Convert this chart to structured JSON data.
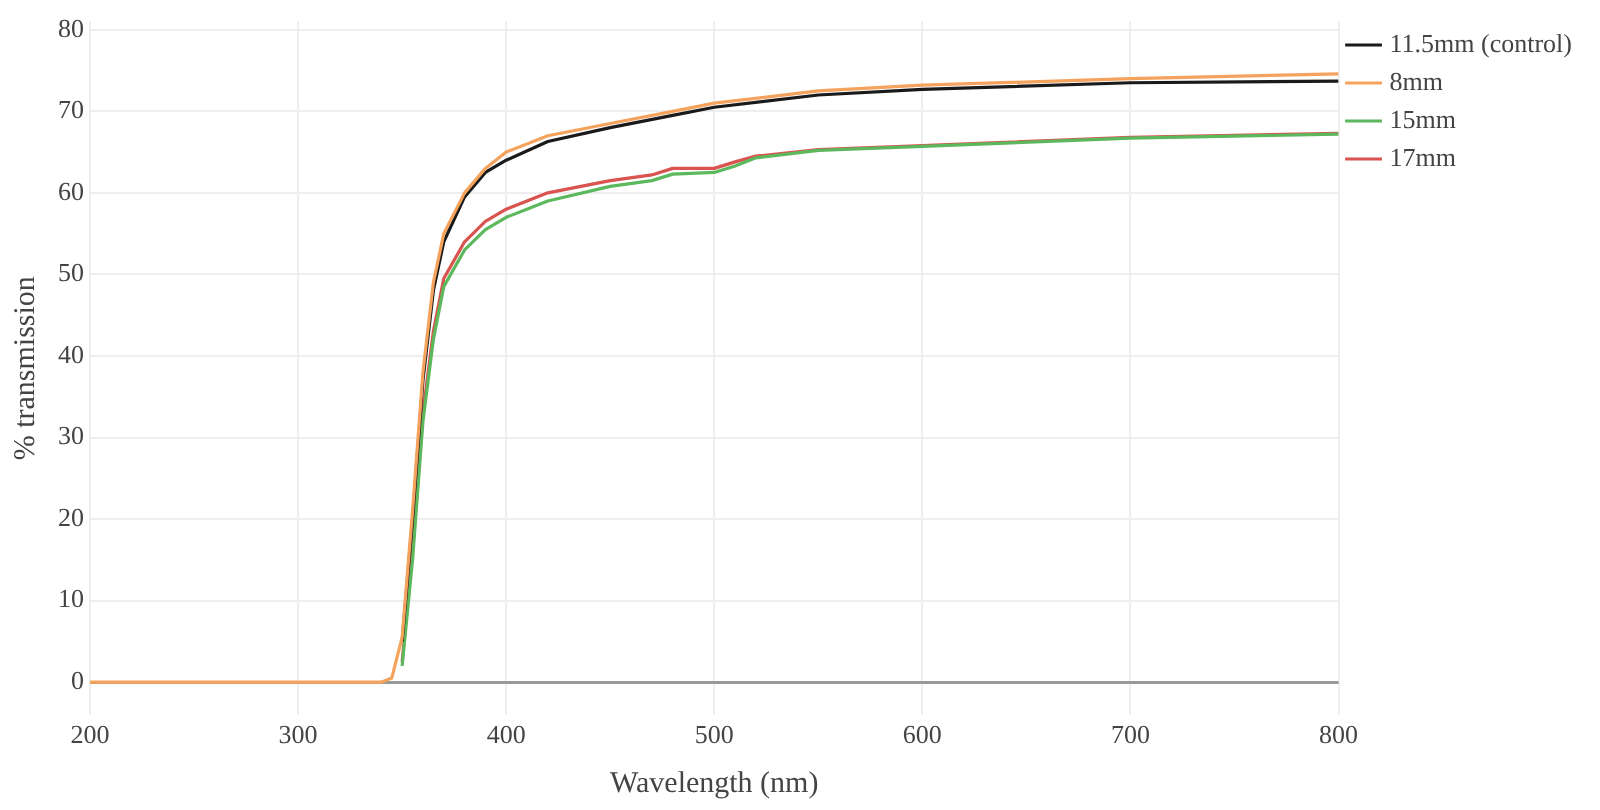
{
  "chart_data": {
    "type": "line",
    "xlabel": "Wavelength (nm)",
    "ylabel": "% transmission",
    "xlim": [
      200,
      800
    ],
    "xticks": [
      200,
      300,
      400,
      500,
      600,
      700,
      800
    ],
    "ylim": [
      -4,
      81
    ],
    "yticks": [
      0,
      10,
      20,
      30,
      40,
      50,
      60,
      70,
      80
    ],
    "grid": true,
    "legend": "top right",
    "marker": "none",
    "line_style": "solid",
    "series": [
      {
        "name": "11.5mm (control)",
        "color": "#1a1a1a",
        "x": [
          350,
          355,
          360,
          365,
          370,
          380,
          390,
          400,
          420,
          450,
          480,
          500,
          550,
          600,
          700,
          800
        ],
        "values": [
          5,
          20,
          37,
          48,
          54,
          59.5,
          62.5,
          64,
          66.3,
          68,
          69.5,
          70.5,
          72,
          72.7,
          73.5,
          73.7
        ]
      },
      {
        "name": "8mm",
        "color": "#f5a25d",
        "x": [
          200,
          300,
          340,
          345,
          350,
          355,
          360,
          365,
          370,
          380,
          390,
          400,
          420,
          450,
          480,
          500,
          550,
          600,
          700,
          800
        ],
        "values": [
          0,
          0,
          0,
          0.5,
          5.5,
          21,
          38,
          49,
          55,
          60,
          63,
          65,
          67,
          68.5,
          70,
          71,
          72.5,
          73.2,
          74,
          74.6
        ]
      },
      {
        "name": "15mm",
        "color": "#5cb85c",
        "x": [
          350,
          355,
          360,
          365,
          370,
          380,
          390,
          400,
          420,
          450,
          470,
          480,
          500,
          510,
          520,
          550,
          600,
          700,
          800
        ],
        "values": [
          2,
          15,
          32,
          42,
          48.5,
          53,
          55.5,
          57,
          59,
          60.8,
          61.5,
          62.3,
          62.5,
          63.3,
          64.3,
          65.2,
          65.7,
          66.7,
          67.2
        ]
      },
      {
        "name": "17mm",
        "color": "#d9534f",
        "x": [
          350,
          355,
          360,
          365,
          370,
          380,
          390,
          400,
          420,
          450,
          470,
          480,
          500,
          510,
          520,
          550,
          600,
          700,
          800
        ],
        "values": [
          2.5,
          16,
          33,
          43,
          49.5,
          54,
          56.5,
          58,
          60,
          61.5,
          62.2,
          63,
          63,
          63.8,
          64.5,
          65.3,
          65.8,
          66.8,
          67.3
        ]
      }
    ]
  }
}
